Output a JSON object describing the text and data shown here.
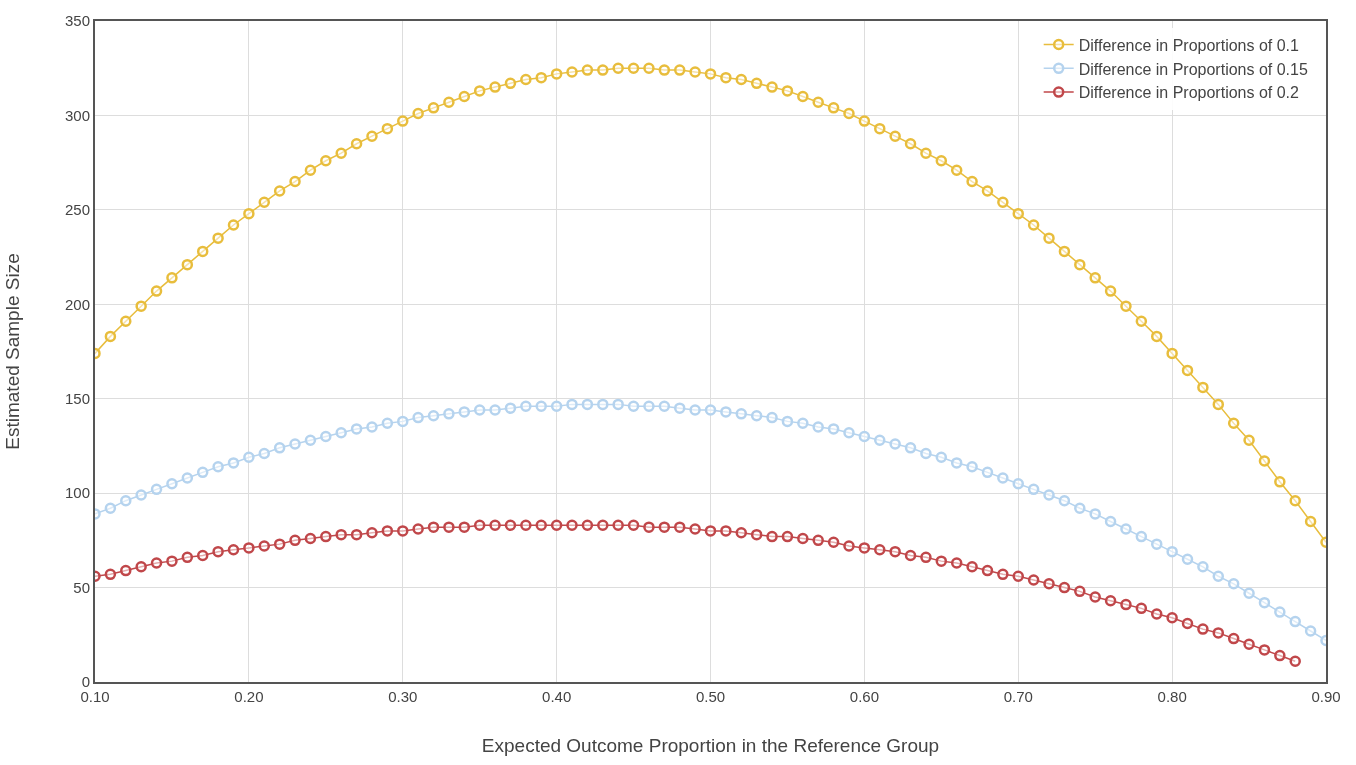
{
  "chart_data": {
    "type": "line",
    "xlabel": "Expected Outcome Proportion in the Reference Group",
    "ylabel": "Estimated Sample Size",
    "x": [
      0.1,
      0.11,
      0.12,
      0.13,
      0.14,
      0.15,
      0.16,
      0.17,
      0.18,
      0.19,
      0.2,
      0.21,
      0.22,
      0.23,
      0.24,
      0.25,
      0.26,
      0.27,
      0.28,
      0.29,
      0.3,
      0.31,
      0.32,
      0.33,
      0.34,
      0.35,
      0.36,
      0.37,
      0.38,
      0.39,
      0.4,
      0.41,
      0.42,
      0.43,
      0.44,
      0.45,
      0.46,
      0.47,
      0.48,
      0.49,
      0.5,
      0.51,
      0.52,
      0.53,
      0.54,
      0.55,
      0.56,
      0.57,
      0.58,
      0.59,
      0.6,
      0.61,
      0.62,
      0.63,
      0.64,
      0.65,
      0.66,
      0.67,
      0.68,
      0.69,
      0.7,
      0.71,
      0.72,
      0.73,
      0.74,
      0.75,
      0.76,
      0.77,
      0.78,
      0.79,
      0.8,
      0.81,
      0.82,
      0.83,
      0.84,
      0.85,
      0.86,
      0.87,
      0.88,
      0.89,
      0.9
    ],
    "series": [
      {
        "name": "Difference in Proportions of 0.1",
        "color": "#e8bd3c",
        "values": [
          174,
          183,
          191,
          199,
          207,
          214,
          221,
          228,
          235,
          242,
          248,
          254,
          260,
          265,
          271,
          276,
          280,
          285,
          289,
          293,
          297,
          301,
          304,
          307,
          310,
          313,
          315,
          317,
          319,
          320,
          322,
          323,
          324,
          324,
          325,
          325,
          325,
          324,
          324,
          323,
          322,
          320,
          319,
          317,
          315,
          313,
          310,
          307,
          304,
          301,
          297,
          293,
          289,
          285,
          280,
          276,
          271,
          265,
          260,
          254,
          248,
          242,
          235,
          228,
          221,
          214,
          207,
          199,
          191,
          183,
          174,
          165,
          156,
          147,
          137,
          128,
          117,
          106,
          96,
          85,
          74
        ]
      },
      {
        "name": "Difference in Proportions of 0.15",
        "color": "#b5d3ee",
        "values": [
          89,
          92,
          96,
          99,
          102,
          105,
          108,
          111,
          114,
          116,
          119,
          121,
          124,
          126,
          128,
          130,
          132,
          134,
          135,
          137,
          138,
          140,
          141,
          142,
          143,
          144,
          144,
          145,
          146,
          146,
          146,
          147,
          147,
          147,
          147,
          146,
          146,
          146,
          145,
          144,
          144,
          143,
          142,
          141,
          140,
          138,
          137,
          135,
          134,
          132,
          130,
          128,
          126,
          124,
          121,
          119,
          116,
          114,
          111,
          108,
          105,
          102,
          99,
          96,
          92,
          89,
          85,
          81,
          77,
          73,
          69,
          65,
          61,
          56,
          52,
          47,
          42,
          37,
          32,
          27,
          22
        ]
      },
      {
        "name": "Difference in Proportions of 0.2",
        "color": "#c0474a",
        "values": [
          56,
          57,
          59,
          61,
          63,
          64,
          66,
          67,
          69,
          70,
          71,
          72,
          73,
          75,
          76,
          77,
          78,
          78,
          79,
          80,
          80,
          81,
          82,
          82,
          82,
          83,
          83,
          83,
          83,
          83,
          83,
          83,
          83,
          83,
          83,
          83,
          82,
          82,
          82,
          81,
          80,
          80,
          79,
          78,
          77,
          77,
          76,
          75,
          74,
          72,
          71,
          70,
          69,
          67,
          66,
          64,
          63,
          61,
          59,
          57,
          56,
          54,
          52,
          50,
          48,
          45,
          43,
          41,
          39,
          36,
          34,
          31,
          28,
          26,
          23,
          20,
          17,
          14,
          11,
          null,
          null
        ]
      }
    ],
    "xlim": [
      0.1,
      0.9
    ],
    "xticks": [
      {
        "value": 0.1,
        "label": "0.10"
      },
      {
        "value": 0.2,
        "label": "0.20"
      },
      {
        "value": 0.3,
        "label": "0.30"
      },
      {
        "value": 0.4,
        "label": "0.40"
      },
      {
        "value": 0.5,
        "label": "0.50"
      },
      {
        "value": 0.6,
        "label": "0.60"
      },
      {
        "value": 0.7,
        "label": "0.70"
      },
      {
        "value": 0.8,
        "label": "0.80"
      },
      {
        "value": 0.9,
        "label": "0.90"
      }
    ],
    "ylim": [
      0,
      350
    ],
    "yticks": [
      0,
      50,
      100,
      150,
      200,
      250,
      300,
      350
    ],
    "grid": true,
    "legend": "top right",
    "marker": "circle",
    "line_style": "solid"
  }
}
